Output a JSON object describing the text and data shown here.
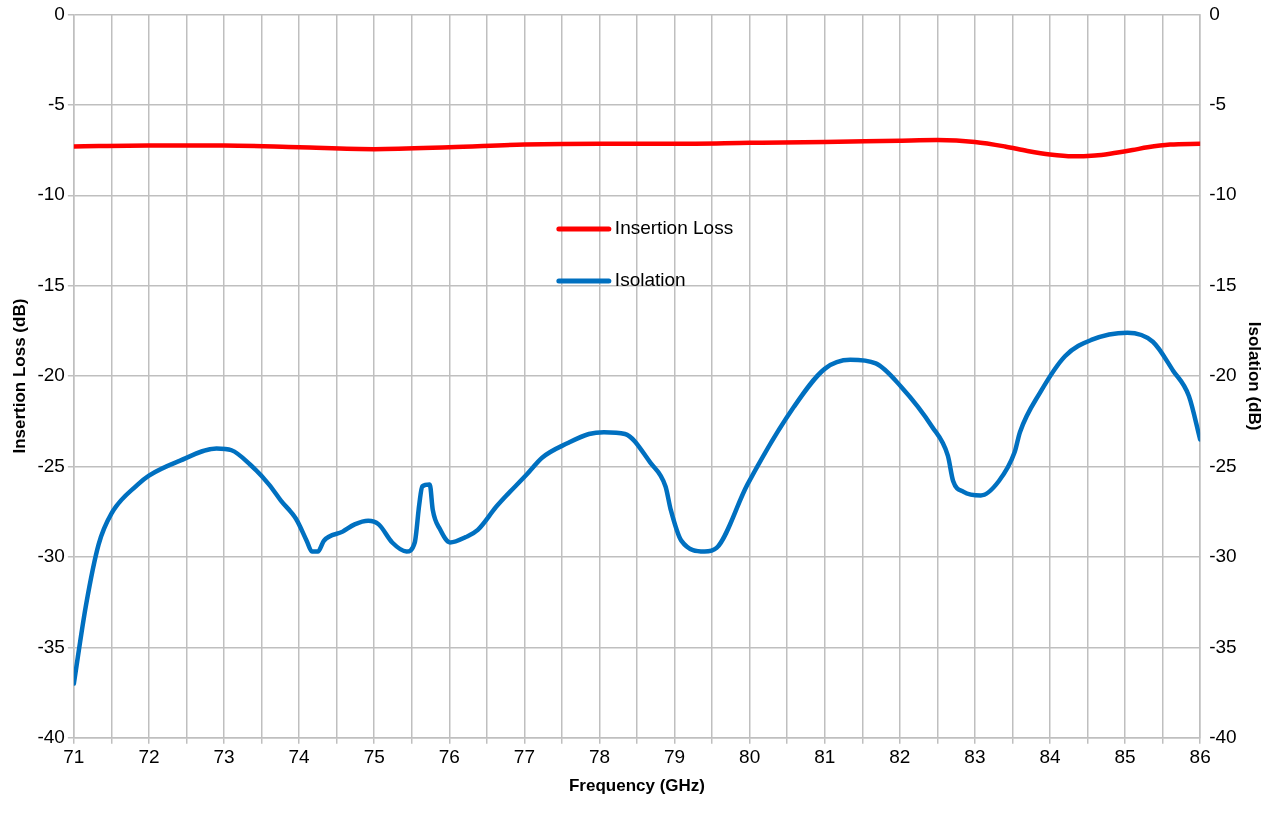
{
  "chart_data": {
    "type": "line",
    "xlabel": "Frequency (GHz)",
    "ylabel": "Insertion Loss (dB)",
    "y2label": "Isolation (dB)",
    "xlim": [
      71,
      86
    ],
    "xticks": [
      71,
      {
        "value": 71.5,
        "label": null
      },
      72,
      {
        "value": 72.5,
        "label": null
      },
      73,
      {
        "value": 73.5,
        "label": null
      },
      74,
      {
        "value": 74.5,
        "label": null
      },
      75,
      {
        "value": 75.5,
        "label": null
      },
      76,
      {
        "value": 76.5,
        "label": null
      },
      77,
      {
        "value": 77.5,
        "label": null
      },
      78,
      {
        "value": 78.5,
        "label": null
      },
      79,
      {
        "value": 79.5,
        "label": null
      },
      80,
      {
        "value": 80.5,
        "label": null
      },
      81,
      {
        "value": 81.5,
        "label": null
      },
      82,
      {
        "value": 82.5,
        "label": null
      },
      83,
      {
        "value": 83.5,
        "label": null
      },
      84,
      {
        "value": 84.5,
        "label": null
      },
      85,
      {
        "value": 85.5,
        "label": null
      },
      86
    ],
    "ylim": [
      -40,
      0
    ],
    "yticks": [
      -40,
      -35,
      -30,
      -25,
      -20,
      -15,
      -10,
      -5,
      0
    ],
    "y2lim": [
      -40,
      0
    ],
    "y2ticks": [
      -40,
      -35,
      -30,
      -25,
      -20,
      -15,
      -10,
      -5,
      0
    ],
    "grid": true,
    "legend": "center",
    "marker": "none",
    "line_style": "solid",
    "series": [
      {
        "name": "Insertion Loss",
        "color": "#ff0000",
        "x": [
          71,
          72,
          73,
          74,
          75,
          76,
          77,
          78,
          79,
          80,
          81,
          82,
          82.5,
          83,
          83.4,
          83.7,
          84,
          84.3,
          84.6,
          84.8,
          85.1,
          85.3,
          85.6,
          86
        ],
        "values": [
          -7.3,
          -7.25,
          -7.25,
          -7.35,
          -7.45,
          -7.35,
          -7.2,
          -7.15,
          -7.15,
          -7.1,
          -7.05,
          -6.98,
          -6.95,
          -7.05,
          -7.3,
          -7.55,
          -7.75,
          -7.85,
          -7.8,
          -7.7,
          -7.5,
          -7.35,
          -7.2,
          -7.15
        ]
      },
      {
        "name": "Isolation",
        "color": "#0070c0",
        "axis": "y2",
        "x": [
          71,
          71.16,
          71.33,
          71.5,
          71.85,
          72,
          72.4,
          72.9,
          73.1,
          73.35,
          73.6,
          73.76,
          73.96,
          74.1,
          74.17,
          74.25,
          74.33,
          74.58,
          74.74,
          74.92,
          75.06,
          75.24,
          75.43,
          75.54,
          75.6,
          75.64,
          75.74,
          75.78,
          75.88,
          76.01,
          76.22,
          76.38,
          76.63,
          77.04,
          77.24,
          77.58,
          77.86,
          78.06,
          78.34,
          78.68,
          78.88,
          78.95,
          79.09,
          79.4,
          79.56,
          79.97,
          80.59,
          81,
          81.34,
          81.68,
          82.02,
          82.43,
          82.64,
          82.71,
          82.85,
          83.08,
          83.32,
          83.53,
          83.6,
          83.87,
          84.2,
          84.55,
          85.03,
          85.37,
          85.64,
          85.85,
          86
        ],
        "values": [
          -37.0,
          -32.7,
          -29.3,
          -27.6,
          -26.0,
          -25.5,
          -24.7,
          -24.0,
          -24.1,
          -24.9,
          -26.0,
          -26.9,
          -27.9,
          -29.1,
          -29.7,
          -29.7,
          -29.1,
          -28.6,
          -28.2,
          -28.0,
          -28.2,
          -29.2,
          -29.7,
          -29.2,
          -27.1,
          -26.1,
          -26.0,
          -27.4,
          -28.5,
          -29.2,
          -28.9,
          -28.5,
          -27.2,
          -25.4,
          -24.5,
          -23.7,
          -23.2,
          -23.1,
          -23.2,
          -24.8,
          -26.1,
          -27.4,
          -29.1,
          -29.7,
          -29.5,
          -26.0,
          -21.7,
          -19.6,
          -19.1,
          -19.3,
          -20.6,
          -22.8,
          -24.4,
          -25.8,
          -26.4,
          -26.6,
          -25.8,
          -24.2,
          -23.1,
          -20.9,
          -18.9,
          -18.0,
          -17.6,
          -18.1,
          -19.7,
          -21.1,
          -23.5
        ]
      }
    ]
  }
}
